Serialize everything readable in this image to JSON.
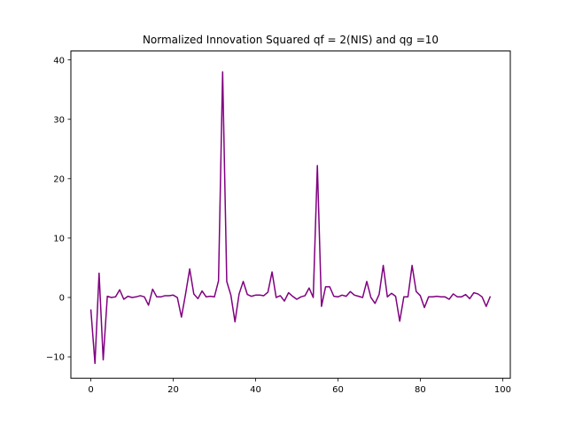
{
  "chart_data": {
    "type": "line",
    "title": "Normalized Innovation Squared qf = 2(NIS) and qg =10",
    "xlabel": "",
    "ylabel": "",
    "xlim": [
      -4.85,
      101.85
    ],
    "ylim": [
      -13.6,
      41.5
    ],
    "xticks": [
      0,
      20,
      40,
      60,
      80,
      100
    ],
    "yticks": [
      -10,
      0,
      10,
      20,
      30,
      40
    ],
    "grid": false,
    "legend": "none",
    "colors": {
      "line": "#800080"
    },
    "series": [
      {
        "values": [
          -2.0,
          -11.1,
          4.1,
          -10.5,
          0.2,
          0.0,
          0.1,
          1.3,
          -0.3,
          0.2,
          0.0,
          0.1,
          0.3,
          0.1,
          -1.3,
          1.4,
          0.1,
          0.1,
          0.3,
          0.3,
          0.4,
          0.0,
          -3.3,
          0.6,
          4.8,
          0.6,
          -0.2,
          1.1,
          0.1,
          0.2,
          0.1,
          2.8,
          38.0,
          2.7,
          0.4,
          -4.1,
          0.6,
          2.7,
          0.5,
          0.2,
          0.4,
          0.4,
          0.3,
          0.9,
          4.3,
          0.0,
          0.3,
          -0.6,
          0.8,
          0.2,
          -0.3,
          0.1,
          0.3,
          1.6,
          0.0,
          22.2,
          -1.5,
          1.8,
          1.8,
          0.2,
          0.1,
          0.4,
          0.2,
          1.0,
          0.4,
          0.2,
          0.0,
          2.7,
          0.0,
          -1.0,
          0.5,
          5.4,
          0.1,
          0.7,
          0.2,
          -4.0,
          0.1,
          0.1,
          5.4,
          1.0,
          0.3,
          -1.7,
          0.1,
          0.1,
          0.2,
          0.1,
          0.1,
          -0.3,
          0.6,
          0.1,
          0.1,
          0.5,
          -0.2,
          0.8,
          0.6,
          0.1,
          -1.5,
          0.2
        ]
      }
    ]
  }
}
